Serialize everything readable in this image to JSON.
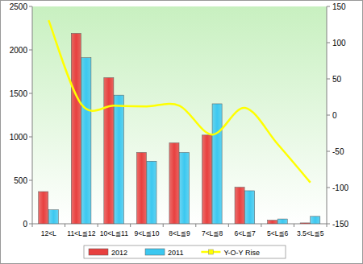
{
  "chart_data": {
    "type": "bar",
    "categories": [
      "12<L",
      "11<L≦12",
      "10<L≦11",
      "9<L≦10",
      "8<L≦9",
      "7<L≦8",
      "6<L≦7",
      "5<L≦6",
      "3.5<L≦5"
    ],
    "series": [
      {
        "name": "2012",
        "color": "#e8403f",
        "values": [
          370,
          2190,
          1680,
          820,
          930,
          1020,
          420,
          40,
          10
        ]
      },
      {
        "name": "2011",
        "color": "#3cc8f0",
        "values": [
          160,
          1910,
          1480,
          720,
          820,
          1380,
          380,
          55,
          85
        ]
      },
      {
        "name": "Y-O-Y Rise",
        "type": "line",
        "axis": "y2",
        "color": "#ffff00",
        "values": [
          131,
          15,
          13,
          12,
          13,
          -27,
          10,
          -40,
          -93
        ]
      }
    ],
    "ylim": [
      0,
      2500
    ],
    "yticks": [
      0,
      500,
      1000,
      1500,
      2000,
      2500
    ],
    "y2lim": [
      -150,
      150
    ],
    "y2ticks": [
      -150,
      -100,
      -50,
      0,
      50,
      100,
      150
    ],
    "grid": false,
    "legend": "bottom"
  }
}
